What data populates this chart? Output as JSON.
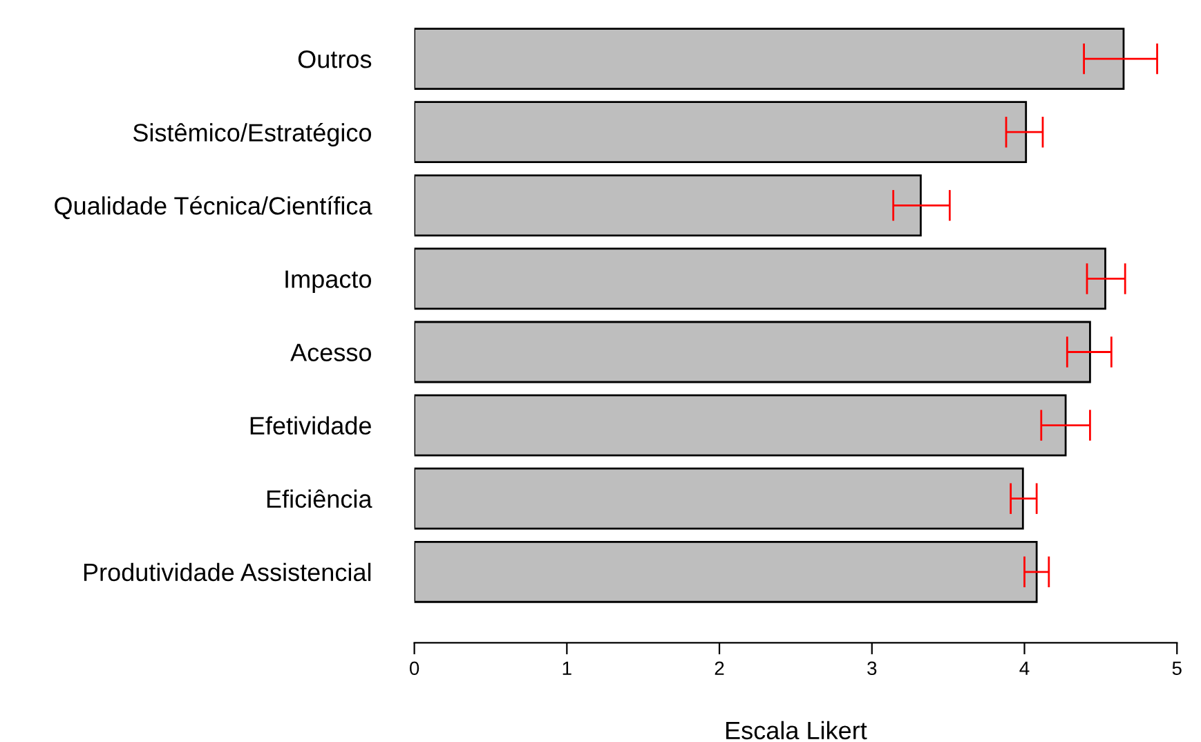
{
  "chart_data": {
    "type": "bar",
    "orientation": "horizontal",
    "xlabel": "Escala Likert",
    "categories": [
      "Outros",
      "Sistêmico/Estratégico",
      "Qualidade Técnica/Científica",
      "Impacto",
      "Acesso",
      "Efetividade",
      "Eficiência",
      "Produtividade Assistencial"
    ],
    "values": [
      4.65,
      4.01,
      3.32,
      4.53,
      4.43,
      4.27,
      3.99,
      4.08
    ],
    "errors": [
      [
        4.39,
        4.87
      ],
      [
        3.88,
        4.12
      ],
      [
        3.14,
        3.51
      ],
      [
        4.41,
        4.66
      ],
      [
        4.28,
        4.57
      ],
      [
        4.11,
        4.43
      ],
      [
        3.91,
        4.08
      ],
      [
        4.0,
        4.16
      ]
    ],
    "color": "#bebebe",
    "xlim": [
      0,
      5
    ],
    "xticks": [
      0,
      1,
      2,
      3,
      4,
      5
    ],
    "grid": false,
    "legend": false
  }
}
